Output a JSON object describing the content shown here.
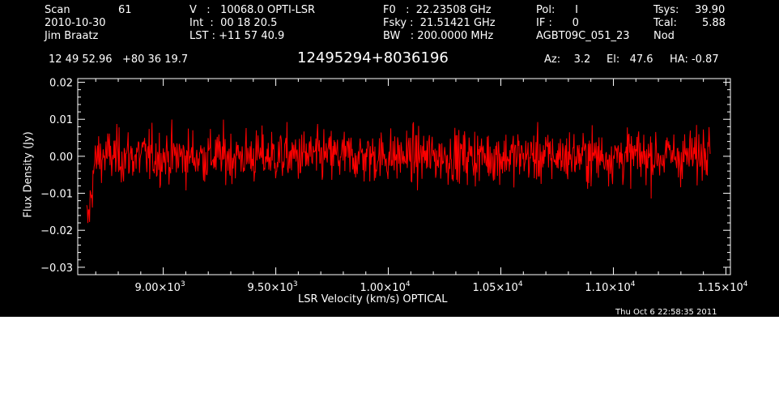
{
  "header": {
    "scan_label": "Scan",
    "scan_value": "61",
    "date": "2010-10-30",
    "observer": "Jim Braatz",
    "velocity": "V   :   10068.0 OPTI-LSR",
    "integration": "Int  :  00 18 20.5",
    "lst": "LST : +11 57 40.9",
    "f0": "F0   :  22.23508 GHz",
    "fsky": "Fsky :  21.51421 GHz",
    "bw": "BW   : 200.0000 MHz",
    "pol": "Pol:      I",
    "if": "IF :      0",
    "project": "AGBT09C_051_23",
    "tsys_label": "Tsys:",
    "tsys_value": "39.90",
    "tcal_label": "Tcal:",
    "tcal_value": "5.88",
    "nod": "Nod",
    "coords": "12 49 52.96   +80 36 19.7",
    "source": "12495294+8036196",
    "az": "Az:    3.2",
    "el": "El:   47.6",
    "ha": "HA: -0.87"
  },
  "chart_data": {
    "type": "line",
    "xlabel": "LSR Velocity (km/s) OPTICAL",
    "ylabel": "Flux Density (Jy)",
    "xlim": [
      8620,
      11520
    ],
    "ylim": [
      -0.032,
      0.021
    ],
    "xticks": [
      9000,
      9500,
      10000,
      10500,
      11000,
      11500
    ],
    "xtick_labels": [
      {
        "mantissa": "9.00×10",
        "exp": "3"
      },
      {
        "mantissa": "9.50×10",
        "exp": "3"
      },
      {
        "mantissa": "1.00×10",
        "exp": "4"
      },
      {
        "mantissa": "1.05×10",
        "exp": "4"
      },
      {
        "mantissa": "1.10×10",
        "exp": "4"
      },
      {
        "mantissa": "1.15×10",
        "exp": "4"
      }
    ],
    "yticks": [
      -0.03,
      -0.02,
      -0.01,
      0.0,
      0.01,
      0.02
    ],
    "ytick_labels": [
      "−0.03",
      "−0.02",
      "−0.01",
      "0.00",
      "0.01",
      "0.02"
    ],
    "grid": false,
    "series": [
      {
        "color": "#ff0000",
        "x_start": 8660,
        "x_end": 11430,
        "points": 1100,
        "baseline": 0.0,
        "noise_rms": 0.0036,
        "profile": [
          [
            8660,
            -0.018
          ],
          [
            8670,
            -0.016
          ],
          [
            8680,
            -0.01
          ],
          [
            8690,
            -0.004
          ],
          [
            8710,
            0.0
          ],
          [
            11380,
            0.0
          ],
          [
            11400,
            0.002
          ],
          [
            11420,
            0.005
          ],
          [
            11430,
            0.007
          ]
        ]
      }
    ]
  },
  "footer": {
    "timestamp": "Thu Oct  6 22:58:35 2011"
  }
}
